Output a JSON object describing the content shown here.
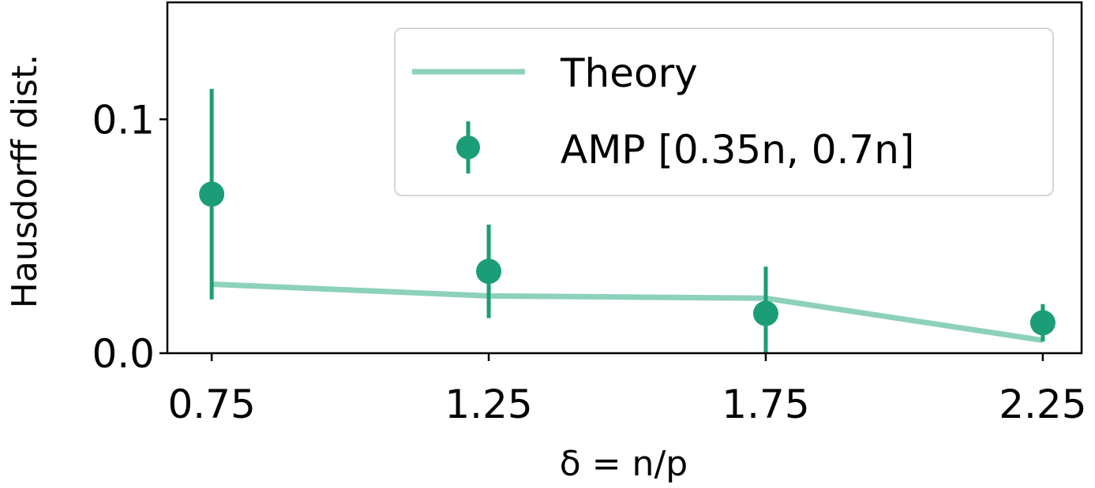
{
  "chart_data": {
    "type": "scatter",
    "title": "",
    "xlabel": "δ = n/p",
    "ylabel": "Hausdorff dist.",
    "xlim": [
      0.67,
      2.32
    ],
    "ylim": [
      0.0,
      0.15
    ],
    "xticks": [
      0.75,
      1.25,
      1.75,
      2.25
    ],
    "xtick_labels": [
      "0.75",
      "1.25",
      "1.75",
      "2.25"
    ],
    "yticks": [
      0.0,
      0.1
    ],
    "ytick_labels": [
      "0.0",
      "0.1"
    ],
    "grid": false,
    "legend_position": "top-right",
    "series": [
      {
        "name": "Theory",
        "kind": "line",
        "color": "#8dd1bb",
        "x": [
          0.75,
          1.25,
          1.75,
          2.25
        ],
        "y": [
          0.0295,
          0.0245,
          0.0235,
          0.0055
        ]
      },
      {
        "name": "AMP [0.35n, 0.7n]",
        "kind": "errorbar",
        "color": "#1b9e77",
        "x": [
          0.75,
          1.25,
          1.75,
          2.25
        ],
        "y": [
          0.068,
          0.035,
          0.017,
          0.013
        ],
        "yerr_low": [
          0.045,
          0.02,
          0.017,
          0.008
        ],
        "yerr_high": [
          0.045,
          0.02,
          0.02,
          0.008
        ]
      }
    ]
  }
}
